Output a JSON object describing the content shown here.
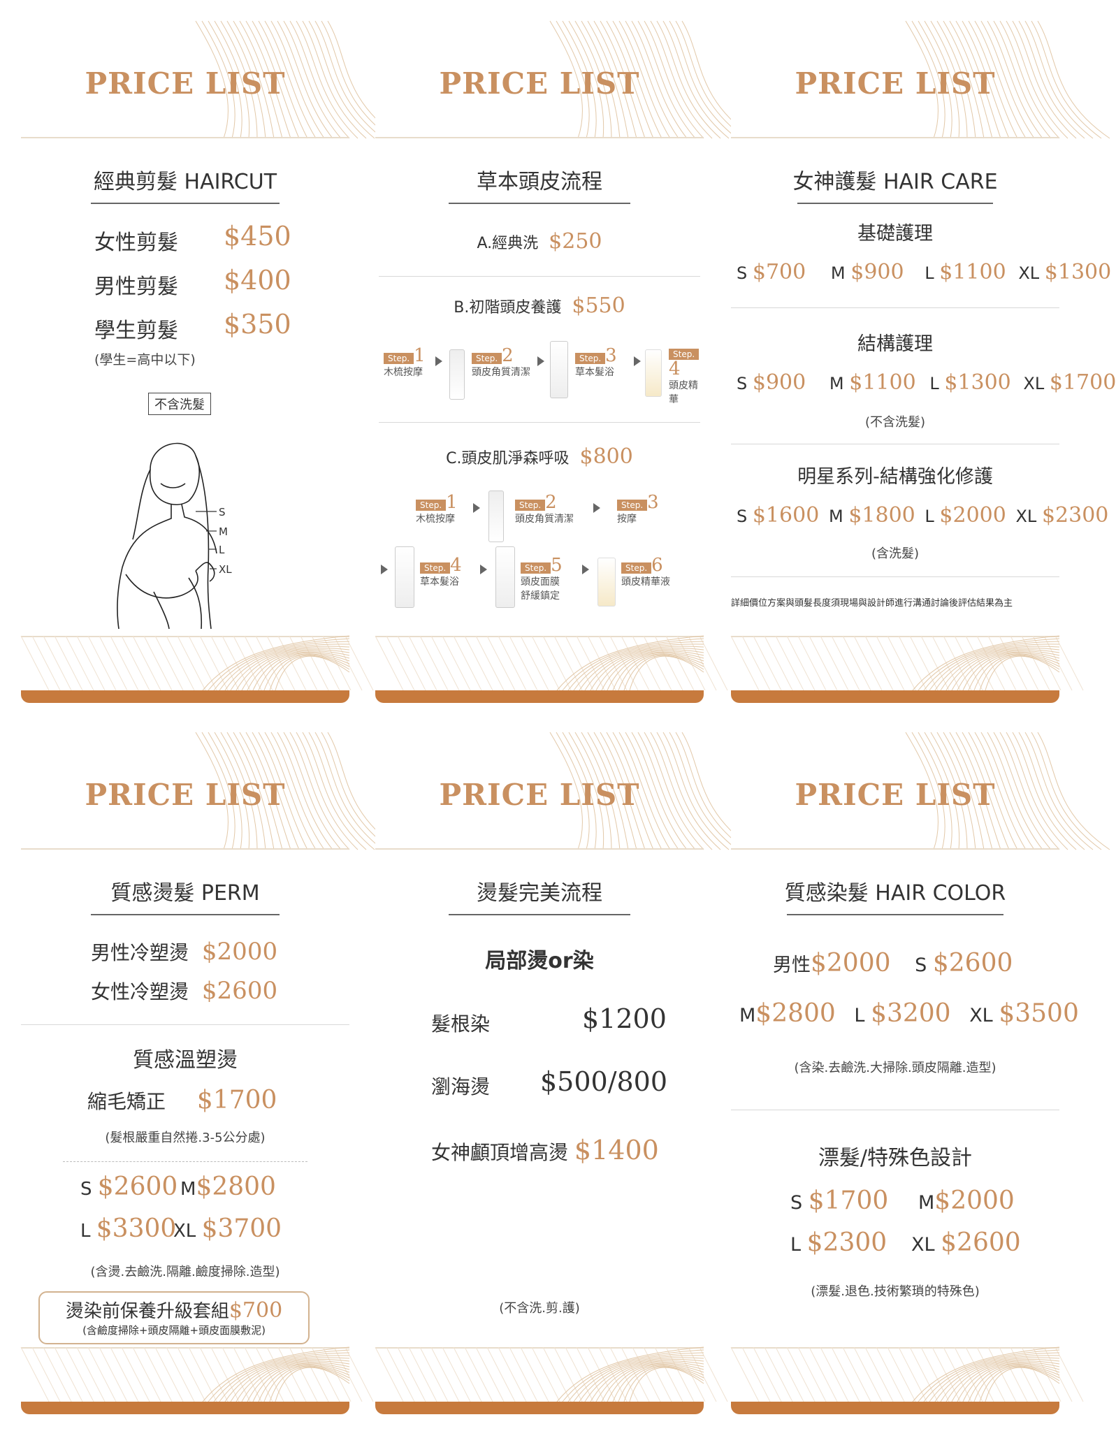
{
  "header_title": "PRICE LIST",
  "cards": {
    "haircut": {
      "heading": "經典剪髮 HAIRCUT",
      "items": [
        {
          "label": "女性剪髮",
          "price": "$450"
        },
        {
          "label": "男性剪髮",
          "price": "$400"
        },
        {
          "label": "學生剪髮",
          "price": "$350"
        }
      ],
      "student_note": "(學生=高中以下)",
      "no_wash_box": "不含洗髮",
      "lengths": [
        "S",
        "M",
        "L",
        "XL"
      ]
    },
    "scalp": {
      "heading": "草本頭皮流程",
      "a": {
        "label": "A.經典洗",
        "price": "$250"
      },
      "b": {
        "label": "B.初階頭皮養護",
        "price": "$550"
      },
      "b_steps": [
        {
          "tag": "Step.",
          "num": "1",
          "label": "木梳按摩"
        },
        {
          "tag": "Step.",
          "num": "2",
          "label": "頭皮角質清潔"
        },
        {
          "tag": "Step.",
          "num": "3",
          "label": "草本髮浴"
        },
        {
          "tag": "Step.",
          "num": "4",
          "label": "頭皮精華"
        }
      ],
      "c": {
        "label": "C.頭皮肌淨森呼吸",
        "price": "$800"
      },
      "c_steps": [
        {
          "tag": "Step.",
          "num": "1",
          "label": "木梳按摩"
        },
        {
          "tag": "Step.",
          "num": "2",
          "label": "頭皮角質清潔"
        },
        {
          "tag": "Step.",
          "num": "3",
          "label": "按摩"
        },
        {
          "tag": "Step.",
          "num": "4",
          "label": "草本髮浴"
        },
        {
          "tag": "Step.",
          "num": "5",
          "label": "頭皮面膜",
          "label2": "舒緩鎮定"
        },
        {
          "tag": "Step.",
          "num": "6",
          "label": "頭皮精華液"
        }
      ]
    },
    "haircare": {
      "heading": "女神護髮 HAIR CARE",
      "basic": {
        "title": "基礎護理",
        "prices": [
          {
            "size": "S",
            "price": "$700"
          },
          {
            "size": "M",
            "price": "$900"
          },
          {
            "size": "L",
            "price": "$1100"
          },
          {
            "size": "XL",
            "price": "$1300"
          }
        ]
      },
      "structure": {
        "title": "結構護理",
        "note": "(不含洗髮)",
        "prices": [
          {
            "size": "S",
            "price": "$900"
          },
          {
            "size": "M",
            "price": "$1100"
          },
          {
            "size": "L",
            "price": "$1300"
          },
          {
            "size": "XL",
            "price": "$1700"
          }
        ]
      },
      "star": {
        "title": "明星系列-結構強化修護",
        "note": "(含洗髮)",
        "prices": [
          {
            "size": "S",
            "price": "$1600"
          },
          {
            "size": "M",
            "price": "$1800"
          },
          {
            "size": "L",
            "price": "$2000"
          },
          {
            "size": "XL",
            "price": "$2300"
          }
        ]
      },
      "disclaimer": "詳細價位方案與頭髮長度須現場與設計師進行溝通討論後評估結果為主"
    },
    "perm": {
      "heading": "質感燙髮 PERM",
      "items": [
        {
          "label": "男性冷塑燙",
          "price": "$2000"
        },
        {
          "label": "女性冷塑燙",
          "price": "$2600"
        }
      ],
      "warm_title": "質感溫塑燙",
      "frizz": {
        "label": "縮毛矯正",
        "price": "$1700"
      },
      "frizz_note": "(髮根嚴重自然捲.3-5公分處)",
      "prices": [
        {
          "size": "S",
          "price": "$2600"
        },
        {
          "size": "M",
          "price": "$2800"
        },
        {
          "size": "L",
          "price": "$3300"
        },
        {
          "size": "XL",
          "price": "$3700"
        }
      ],
      "prices_note": "(含燙.去鹼洗.隔離.鹼度掃除.造型)",
      "upgrade": {
        "label": "燙染前保養升級套組",
        "price": "$700",
        "note": "(含鹼度掃除+頭皮隔離+頭皮面膜敷泥)"
      }
    },
    "permflow": {
      "heading": "燙髮完美流程",
      "sub": "局部燙or染",
      "items": [
        {
          "label": "髮根染",
          "price": "$1200"
        },
        {
          "label": "瀏海燙",
          "price": "$500/800"
        },
        {
          "label": "女神顱頂增高燙",
          "price": "$1400"
        }
      ],
      "note": "(不含洗.剪.護)"
    },
    "color": {
      "heading": "質感染髮 HAIR COLOR",
      "male": {
        "label": "男性",
        "price": "$2000"
      },
      "prices": [
        {
          "size": "S",
          "price": "$2600"
        },
        {
          "size": "M",
          "price": "$2800"
        },
        {
          "size": "L",
          "price": "$3200"
        },
        {
          "size": "XL",
          "price": "$3500"
        }
      ],
      "note": "(含染.去鹼洗.大掃除.頭皮隔離.造型)",
      "bleach_title": "漂髮/特殊色設計",
      "bleach_prices": [
        {
          "size": "S",
          "price": "$1700"
        },
        {
          "size": "M",
          "price": "$2000"
        },
        {
          "size": "L",
          "price": "$2300"
        },
        {
          "size": "XL",
          "price": "$2600"
        }
      ],
      "bleach_note": "(漂髮.退色.技術繁瑣的特殊色)"
    }
  },
  "colors": {
    "accent": "#c99060",
    "bar": "#c77a3d",
    "line": "#e8dccb"
  }
}
